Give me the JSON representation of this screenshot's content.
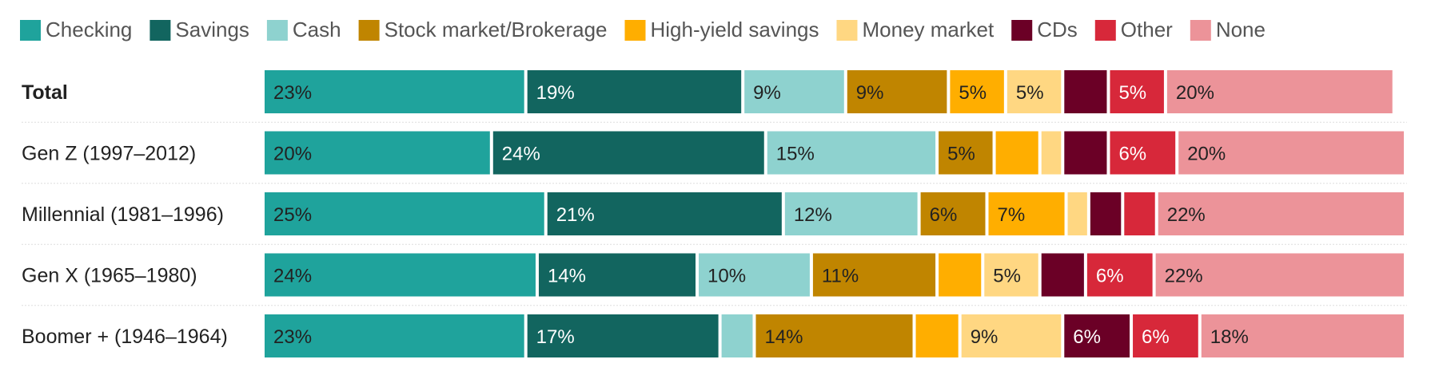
{
  "chart_data": {
    "type": "bar",
    "orientation": "horizontal",
    "stacked": true,
    "legend_position": "top",
    "categories": [
      "Total",
      "Gen Z (1997–2012)",
      "Millennial (1981–1996)",
      "Gen X (1965–1980)",
      "Boomer + (1946–1964)"
    ],
    "series": [
      {
        "name": "Checking",
        "color": "#1fa39c",
        "values": [
          23,
          20,
          25,
          24,
          23
        ],
        "labels": [
          "23%",
          "20%",
          "25%",
          "24%",
          "23%"
        ],
        "label_color": "#222222"
      },
      {
        "name": "Savings",
        "color": "#12655f",
        "values": [
          19,
          24,
          21,
          14,
          17
        ],
        "labels": [
          "19%",
          "24%",
          "21%",
          "14%",
          "17%"
        ],
        "label_color": "#ffffff"
      },
      {
        "name": "Cash",
        "color": "#8ed2cf",
        "values": [
          9,
          15,
          12,
          10,
          3
        ],
        "labels": [
          "9%",
          "15%",
          "12%",
          "10%",
          ""
        ],
        "label_color": "#222222"
      },
      {
        "name": "Stock market/Brokerage",
        "color": "#c08500",
        "values": [
          9,
          5,
          6,
          11,
          14
        ],
        "labels": [
          "9%",
          "5%",
          "6%",
          "11%",
          "14%"
        ],
        "label_color": "#222222"
      },
      {
        "name": "High-yield savings",
        "color": "#ffae00",
        "values": [
          5,
          4,
          7,
          4,
          4
        ],
        "labels": [
          "5%",
          "",
          "7%",
          "",
          ""
        ],
        "label_color": "#222222"
      },
      {
        "name": "Money market",
        "color": "#ffd782",
        "values": [
          5,
          2,
          2,
          5,
          9
        ],
        "labels": [
          "5%",
          "",
          "",
          "5%",
          "9%"
        ],
        "label_color": "#222222"
      },
      {
        "name": "CDs",
        "color": "#6b0026",
        "values": [
          4,
          4,
          3,
          4,
          6
        ],
        "labels": [
          "",
          "",
          "",
          "",
          "6%"
        ],
        "label_color": "#ffffff"
      },
      {
        "name": "Other",
        "color": "#d7283a",
        "values": [
          5,
          6,
          3,
          6,
          6
        ],
        "labels": [
          "5%",
          "6%",
          "",
          "6%",
          "6%"
        ],
        "label_color": "#ffffff"
      },
      {
        "name": "None",
        "color": "#ec9399",
        "values": [
          20,
          20,
          22,
          22,
          18
        ],
        "labels": [
          "20%",
          "20%",
          "22%",
          "22%",
          "18%"
        ],
        "label_color": "#222222"
      }
    ],
    "xlim": [
      0,
      100
    ],
    "grid": false,
    "bold_categories": [
      "Total"
    ]
  }
}
